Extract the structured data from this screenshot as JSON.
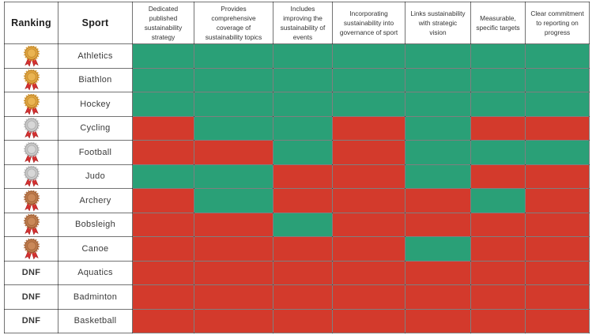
{
  "chart_data": {
    "type": "table",
    "header": {
      "ranking": "Ranking",
      "sport": "Sport",
      "criteria": [
        "Dedicated published sustainability strategy",
        "Provides comprehensive coverage of sustainability topics",
        "Includes improving the sustainability of events",
        "Incorporating sustainability into governance of sport",
        "Links sustainability with strategic vision",
        "Measurable, specific targets",
        "Clear commitment to reporting on progress"
      ]
    },
    "rows": [
      {
        "medal": "gold",
        "rank_label": "",
        "sport": "Athletics",
        "met": [
          1,
          1,
          1,
          1,
          1,
          1,
          1
        ]
      },
      {
        "medal": "gold",
        "rank_label": "",
        "sport": "Biathlon",
        "met": [
          1,
          1,
          1,
          1,
          1,
          1,
          1
        ]
      },
      {
        "medal": "gold",
        "rank_label": "",
        "sport": "Hockey",
        "met": [
          1,
          1,
          1,
          1,
          1,
          1,
          1
        ]
      },
      {
        "medal": "silver",
        "rank_label": "",
        "sport": "Cycling",
        "met": [
          0,
          1,
          1,
          0,
          1,
          0,
          0
        ]
      },
      {
        "medal": "silver",
        "rank_label": "",
        "sport": "Football",
        "met": [
          0,
          0,
          1,
          0,
          1,
          1,
          1
        ]
      },
      {
        "medal": "silver",
        "rank_label": "",
        "sport": "Judo",
        "met": [
          1,
          1,
          0,
          0,
          1,
          0,
          0
        ]
      },
      {
        "medal": "bronze",
        "rank_label": "",
        "sport": "Archery",
        "met": [
          0,
          1,
          0,
          0,
          0,
          1,
          0
        ]
      },
      {
        "medal": "bronze",
        "rank_label": "",
        "sport": "Bobsleigh",
        "met": [
          0,
          0,
          1,
          0,
          0,
          0,
          0
        ]
      },
      {
        "medal": "bronze",
        "rank_label": "",
        "sport": "Canoe",
        "met": [
          0,
          0,
          0,
          0,
          1,
          0,
          0
        ]
      },
      {
        "medal": null,
        "rank_label": "DNF",
        "sport": "Aquatics",
        "met": [
          0,
          0,
          0,
          0,
          0,
          0,
          0
        ]
      },
      {
        "medal": null,
        "rank_label": "DNF",
        "sport": "Badminton",
        "met": [
          0,
          0,
          0,
          0,
          0,
          0,
          0
        ]
      },
      {
        "medal": null,
        "rank_label": "DNF",
        "sport": "Basketball",
        "met": [
          0,
          0,
          0,
          0,
          0,
          0,
          0
        ]
      }
    ],
    "cell_colors": {
      "met": "#2aa077",
      "not_met": "#d33a2c"
    },
    "medal_colors": {
      "gold": {
        "main": "#e2a43c",
        "dark": "#b07b25",
        "light": "#f3c86b",
        "ribbon": "#d53030",
        "ribbon_dark": "#a32222"
      },
      "silver": {
        "main": "#c9c9c9",
        "dark": "#9a9a9a",
        "light": "#e8e8e8",
        "ribbon": "#d53030",
        "ribbon_dark": "#a32222"
      },
      "bronze": {
        "main": "#c07a4a",
        "dark": "#8f5731",
        "light": "#d79a6b",
        "ribbon": "#d53030",
        "ribbon_dark": "#a32222"
      }
    },
    "legend_note": {
      "met_meaning": "criterion satisfied (green)",
      "not_met_meaning": "criterion not satisfied (red)"
    }
  }
}
